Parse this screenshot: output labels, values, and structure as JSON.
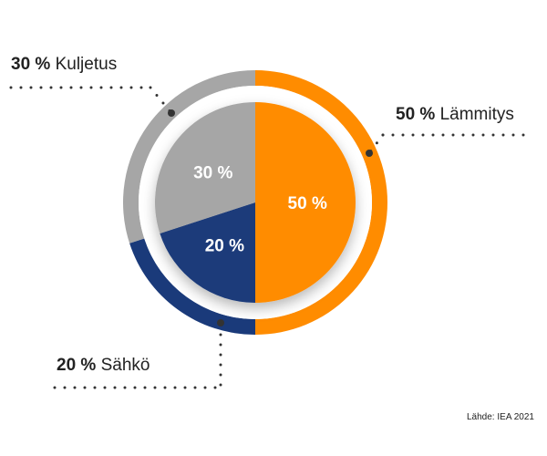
{
  "chart_data": {
    "type": "pie",
    "slices": [
      {
        "label": "Lämmitys",
        "value": 50,
        "display": "50 %",
        "color": "#FF8C00"
      },
      {
        "label": "Sähkö",
        "value": 20,
        "display": "20 %",
        "color": "#1A3A7A"
      },
      {
        "label": "Kuljetus",
        "value": 30,
        "display": "30 %",
        "color": "#A6A6A6"
      }
    ]
  },
  "source": "Lähde: IEA 2021"
}
